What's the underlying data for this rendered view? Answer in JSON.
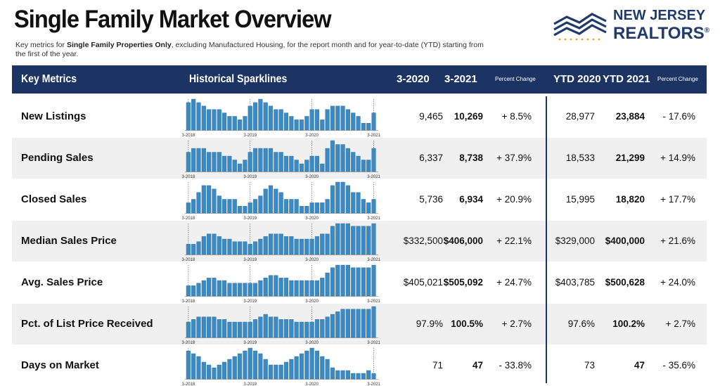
{
  "page": {
    "title": "Single Family Market Overview",
    "subtitle_prefix": "Key metrics for ",
    "subtitle_bold": "Single Family Properties Only",
    "subtitle_suffix": ", excluding Manufactured Housing, for the report month and for year-to-date (YTD) starting from the first of the year."
  },
  "logo": {
    "line1": "NEW JERSEY",
    "line2": "REALTORS",
    "reg": "®"
  },
  "colors": {
    "header_bg": "#1c3463",
    "bar": "#3b8ac4",
    "row_alt": "#f0f0f0",
    "logo": "#1f3a6b"
  },
  "header": {
    "key_metrics": "Key Metrics",
    "sparklines": "Historical Sparklines",
    "col_prev": "3-2020",
    "col_curr": "3-2021",
    "pct_change": "Percent Change",
    "ytd_prev": "YTD 2020",
    "ytd_curr": "YTD 2021",
    "ytd_pct_change": "Percent Change"
  },
  "rows": [
    {
      "metric": "New Listings",
      "prev": "9,465",
      "curr": "10,269",
      "change": "+ 8.5%",
      "ytd_prev": "28,977",
      "ytd_curr": "23,884",
      "ytd_change": "- 17.6%"
    },
    {
      "metric": "Pending Sales",
      "prev": "6,337",
      "curr": "8,738",
      "change": "+ 37.9%",
      "ytd_prev": "18,533",
      "ytd_curr": "21,299",
      "ytd_change": "+ 14.9%"
    },
    {
      "metric": "Closed Sales",
      "prev": "5,736",
      "curr": "6,934",
      "change": "+ 20.9%",
      "ytd_prev": "15,995",
      "ytd_curr": "18,820",
      "ytd_change": "+ 17.7%"
    },
    {
      "metric": "Median Sales Price",
      "prev": "$332,500",
      "curr": "$406,000",
      "change": "+ 22.1%",
      "ytd_prev": "$329,000",
      "ytd_curr": "$400,000",
      "ytd_change": "+ 21.6%"
    },
    {
      "metric": "Avg. Sales Price",
      "prev": "$405,021",
      "curr": "$505,092",
      "change": "+ 24.7%",
      "ytd_prev": "$403,785",
      "ytd_curr": "$500,628",
      "ytd_change": "+ 24.0%"
    },
    {
      "metric": "Pct. of List Price Received",
      "prev": "97.9%",
      "curr": "100.5%",
      "change": "+ 2.7%",
      "ytd_prev": "97.6%",
      "ytd_curr": "100.2%",
      "ytd_change": "+ 2.7%"
    },
    {
      "metric": "Days on Market",
      "prev": "71",
      "curr": "47",
      "change": "- 33.8%",
      "ytd_prev": "73",
      "ytd_curr": "47",
      "ytd_change": "- 35.6%"
    }
  ],
  "chart_data": [
    {
      "type": "bar",
      "title": "New Listings",
      "x_ticks": [
        "3-2018",
        "3-2019",
        "3-2020",
        "3-2021"
      ],
      "values": [
        8,
        9,
        8,
        7,
        6,
        6,
        6,
        5,
        4,
        4,
        3,
        4,
        7,
        8,
        9,
        8,
        7,
        6,
        6,
        5,
        4,
        3,
        3,
        4,
        6,
        6,
        3,
        6,
        7,
        7,
        7,
        6,
        5,
        4,
        2,
        2,
        5
      ]
    },
    {
      "type": "bar",
      "title": "Pending Sales",
      "x_ticks": [
        "3-2018",
        "3-2019",
        "3-2020",
        "3-2021"
      ],
      "values": [
        5,
        6,
        6,
        6,
        5,
        5,
        5,
        4,
        4,
        3,
        2,
        3,
        5,
        6,
        6,
        6,
        6,
        5,
        5,
        4,
        4,
        3,
        2,
        3,
        4,
        4,
        2,
        6,
        8,
        7,
        7,
        6,
        5,
        4,
        3,
        3,
        6
      ]
    },
    {
      "type": "bar",
      "title": "Closed Sales",
      "x_ticks": [
        "3-2018",
        "3-2019",
        "3-2020",
        "3-2021"
      ],
      "values": [
        3,
        4,
        6,
        8,
        8,
        7,
        5,
        4,
        4,
        4,
        2,
        2,
        3,
        4,
        5,
        7,
        8,
        7,
        6,
        4,
        4,
        4,
        2,
        2,
        3,
        3,
        3,
        4,
        8,
        9,
        9,
        8,
        6,
        6,
        4,
        3,
        4
      ]
    },
    {
      "type": "bar",
      "title": "Median Sales Price",
      "x_ticks": [
        "3-2018",
        "3-2019",
        "3-2020",
        "3-2021"
      ],
      "values": [
        4,
        4,
        5,
        7,
        8,
        8,
        7,
        6,
        6,
        5,
        5,
        5,
        4,
        5,
        6,
        7,
        8,
        8,
        8,
        7,
        7,
        6,
        6,
        6,
        6,
        7,
        8,
        8,
        11,
        12,
        12,
        12,
        11,
        11,
        11,
        11,
        12
      ]
    },
    {
      "type": "bar",
      "title": "Avg. Sales Price",
      "x_ticks": [
        "3-2018",
        "3-2019",
        "3-2020",
        "3-2021"
      ],
      "values": [
        4,
        4,
        5,
        6,
        7,
        7,
        6,
        6,
        5,
        5,
        5,
        5,
        5,
        5,
        6,
        7,
        8,
        8,
        7,
        7,
        6,
        6,
        6,
        6,
        6,
        6,
        7,
        9,
        11,
        12,
        12,
        12,
        11,
        11,
        11,
        11,
        12
      ]
    },
    {
      "type": "bar",
      "title": "Pct. of List Price Received",
      "x_ticks": [
        "3-2018",
        "3-2019",
        "3-2020",
        "3-2021"
      ],
      "values": [
        6,
        7,
        8,
        8,
        8,
        8,
        7,
        7,
        6,
        6,
        6,
        6,
        6,
        7,
        8,
        9,
        8,
        8,
        7,
        7,
        7,
        6,
        6,
        6,
        6,
        7,
        7,
        8,
        9,
        10,
        11,
        11,
        11,
        11,
        11,
        11,
        12
      ]
    },
    {
      "type": "bar",
      "title": "Days on Market",
      "x_ticks": [
        "3-2018",
        "3-2019",
        "3-2020",
        "3-2021"
      ],
      "values": [
        10,
        9,
        8,
        6,
        5,
        4,
        5,
        6,
        7,
        8,
        9,
        10,
        11,
        10,
        9,
        7,
        5,
        5,
        5,
        6,
        7,
        8,
        9,
        10,
        11,
        10,
        8,
        7,
        4,
        3,
        3,
        3,
        2,
        2,
        2,
        3,
        2
      ]
    }
  ]
}
